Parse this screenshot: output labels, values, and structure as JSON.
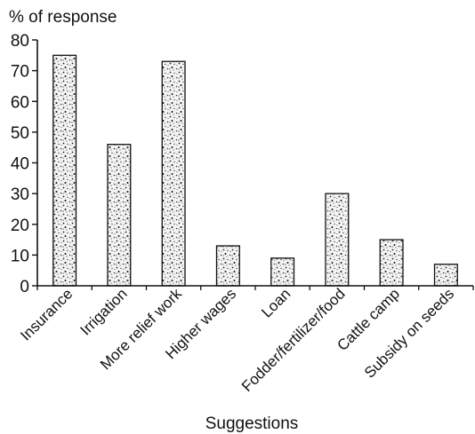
{
  "chart_data": {
    "type": "bar",
    "ylabel": "% of response",
    "xlabel": "Suggestions",
    "ylim": [
      0,
      80
    ],
    "yticks": [
      0,
      10,
      20,
      30,
      40,
      50,
      60,
      70,
      80
    ],
    "categories": [
      "Insurance",
      "Irrigation",
      "More relief work",
      "Higher wages",
      "Loan",
      "Fodder/fertilizer/food",
      "Cattle camp",
      "Subsidy on seeds"
    ],
    "values": [
      75,
      46,
      73,
      13,
      9,
      30,
      15,
      7
    ],
    "grid": false,
    "legend": "none",
    "bar_fill": "stippled",
    "colors": {
      "axis": "#111111",
      "bar_outline": "#111111",
      "background": "#ffffff"
    }
  }
}
